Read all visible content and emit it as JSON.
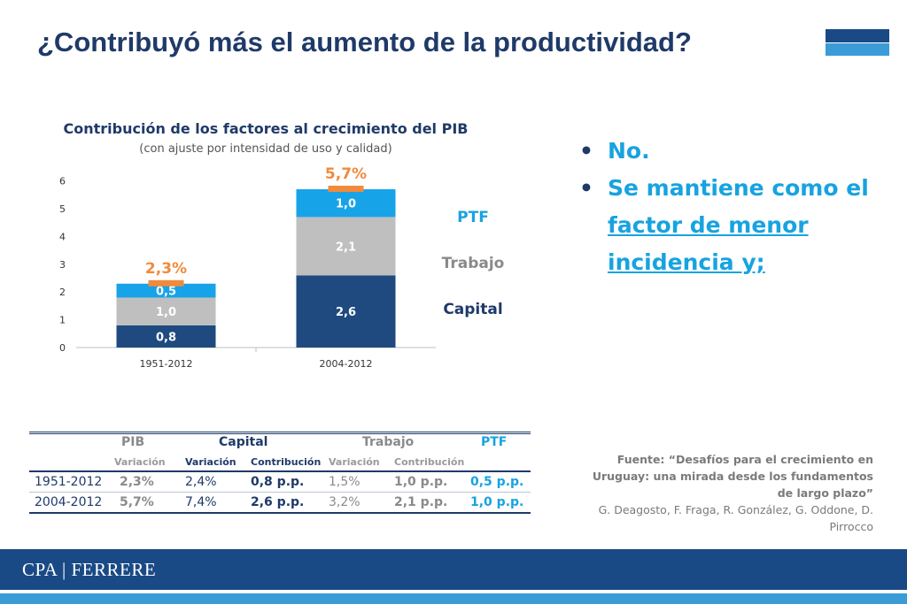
{
  "slide": {
    "title": "¿Contribuyó más el aumento de la productividad?",
    "colors": {
      "dark_blue": "#1f3a68",
      "accent_blue": "#17a3e0",
      "orange": "#f08a3c",
      "gray": "#bfbfbf",
      "footer": "#1a4a86"
    }
  },
  "chart_data": {
    "type": "bar",
    "stacked": true,
    "title": "Contribución de los factores al crecimiento del PIB",
    "subtitle": "(con ajuste por intensidad de uso y calidad)",
    "categories": [
      "1951-2012",
      "2004-2012"
    ],
    "series": [
      {
        "name": "Capital",
        "values": [
          0.8,
          2.6
        ],
        "labels": [
          "0,8",
          "2,6"
        ],
        "color": "#1f4a80"
      },
      {
        "name": "Trabajo",
        "values": [
          1.0,
          2.1
        ],
        "labels": [
          "1,0",
          "2,1"
        ],
        "color": "#bfbfbf"
      },
      {
        "name": "PTF",
        "values": [
          0.5,
          1.0
        ],
        "labels": [
          "0,5",
          "1,0"
        ],
        "color": "#17a3e8"
      }
    ],
    "totals": {
      "values": [
        2.3,
        5.7
      ],
      "labels": [
        "2,3%",
        "5,7%"
      ],
      "color": "#f08a3c"
    },
    "ylim": [
      0,
      6
    ],
    "yticks": [
      0,
      1,
      2,
      3,
      4,
      5,
      6
    ],
    "legend_placement": "right",
    "grid": false
  },
  "bullets": [
    {
      "text": "No."
    },
    {
      "text_plain": "Se mantiene como el ",
      "text_underlined": "factor de menor incidencia y;"
    }
  ],
  "table": {
    "groups": {
      "pib": "PIB",
      "capital": "Capital",
      "trabajo": "Trabajo",
      "ptf": "PTF"
    },
    "subheaders": {
      "pib_var": "Variación",
      "cap_var": "Variación",
      "cap_con": "Contribución",
      "tra_var": "Variación",
      "tra_con": "Contribución"
    },
    "rows": [
      {
        "period": "1951-2012",
        "pib_var": "2,3%",
        "cap_var": "2,4%",
        "cap_con": "0,8 p.p.",
        "tra_var": "1,5%",
        "tra_con": "1,0 p.p.",
        "ptf": "0,5 p.p."
      },
      {
        "period": "2004-2012",
        "pib_var": "5,7%",
        "cap_var": "7,4%",
        "cap_con": "2,6 p.p.",
        "tra_var": "3,2%",
        "tra_con": "2,1 p.p.",
        "ptf": "1,0 p.p."
      }
    ]
  },
  "source": {
    "title_line": "Fuente: “Desafíos para el crecimiento en Uruguay: una mirada desde los fundamentos de largo plazo”",
    "authors": "G. Deagosto, F. Fraga, R. González, G. Oddone, D. Pirrocco"
  },
  "footer": {
    "logo": "CPA | FERRERE"
  }
}
